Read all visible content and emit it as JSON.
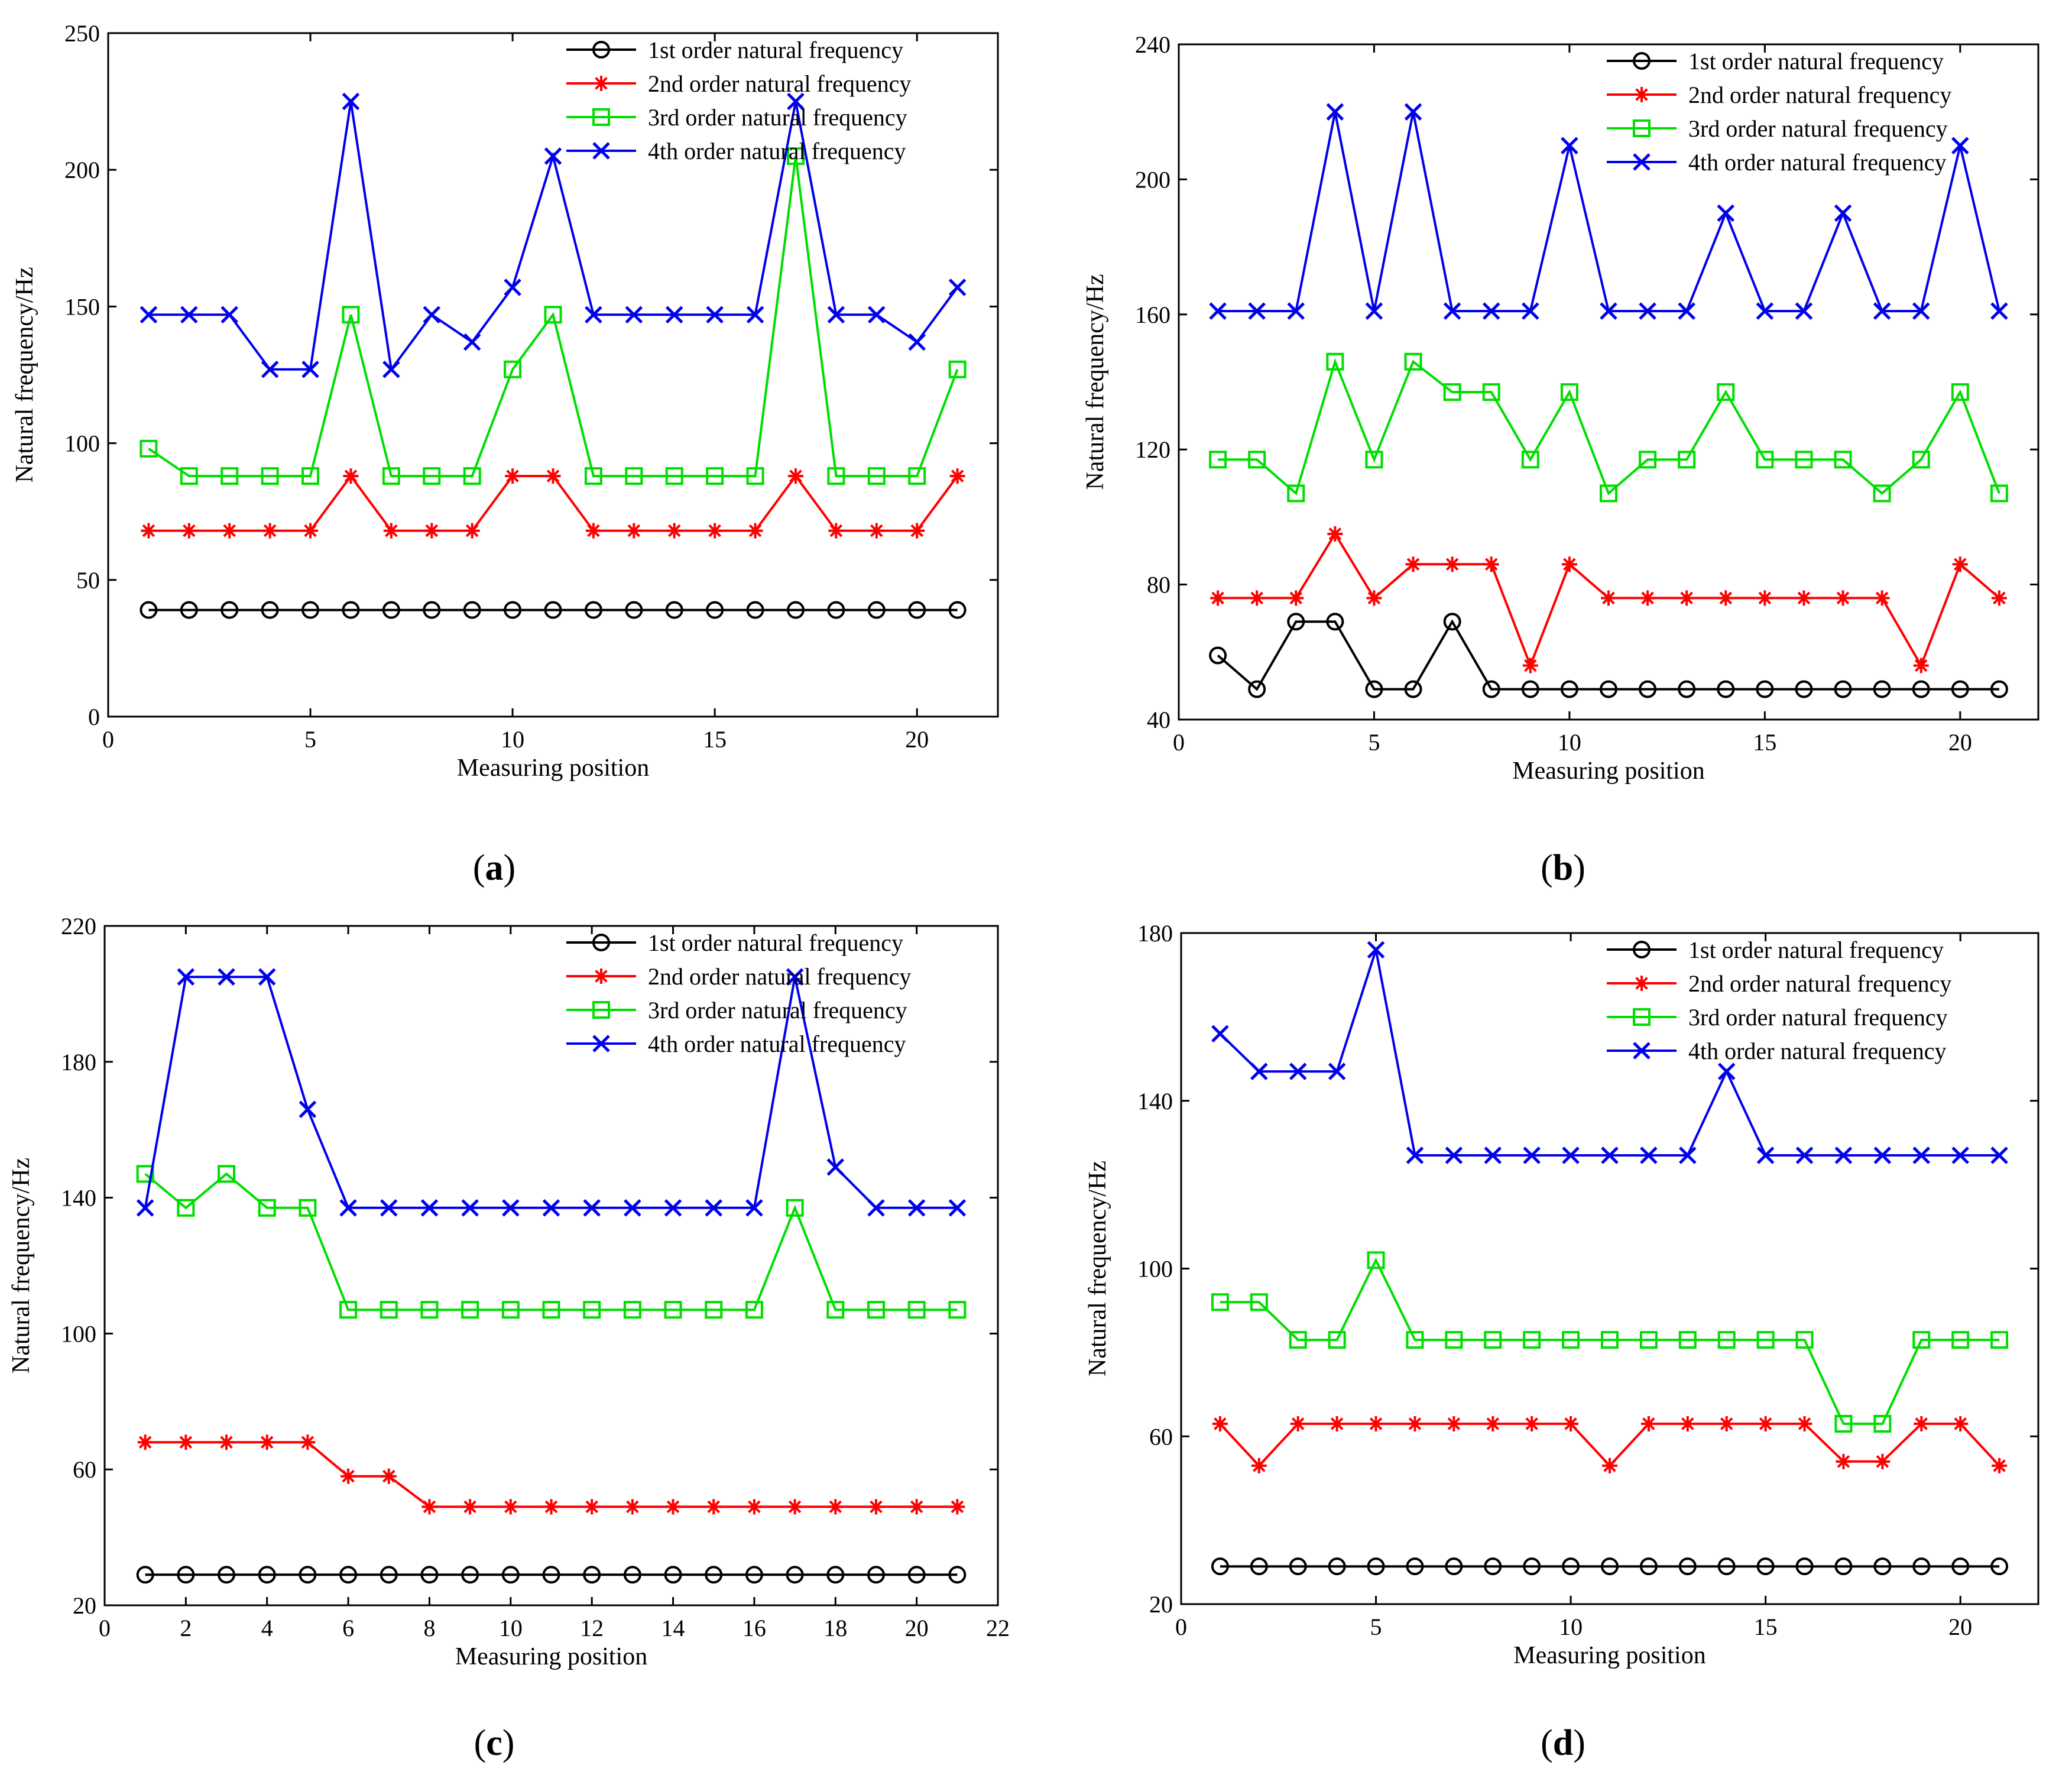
{
  "figure": {
    "series_names": [
      "1st order natural frequency",
      "2nd order natural frequency",
      "3rd order natural frequency",
      "4th order natural frequency"
    ],
    "series_colors": [
      "#000000",
      "#ff0000",
      "#00dd00",
      "#0000ee"
    ],
    "series_markers": [
      "circle",
      "asterisk",
      "square",
      "x"
    ]
  },
  "chart_data": [
    {
      "type": "line",
      "panel_label": "(a)",
      "xlabel": "Measuring position",
      "ylabel": "Natural frequency/Hz",
      "xlim": [
        0,
        22
      ],
      "ylim": [
        0,
        250
      ],
      "xticks": [
        0,
        5,
        10,
        15,
        20
      ],
      "yticks": [
        0,
        50,
        100,
        150,
        200,
        250
      ],
      "legend": "top-right",
      "grid": false,
      "x": [
        1,
        2,
        3,
        4,
        5,
        6,
        7,
        8,
        9,
        10,
        11,
        12,
        13,
        14,
        15,
        16,
        17,
        18,
        19,
        20,
        21
      ],
      "series": [
        {
          "name": "1st order natural frequency",
          "values": [
            39,
            39,
            39,
            39,
            39,
            39,
            39,
            39,
            39,
            39,
            39,
            39,
            39,
            39,
            39,
            39,
            39,
            39,
            39,
            39,
            39
          ]
        },
        {
          "name": "2nd order natural frequency",
          "values": [
            68,
            68,
            68,
            68,
            68,
            88,
            68,
            68,
            68,
            88,
            88,
            68,
            68,
            68,
            68,
            68,
            88,
            68,
            68,
            68,
            88
          ]
        },
        {
          "name": "3rd order natural frequency",
          "values": [
            98,
            88,
            88,
            88,
            88,
            147,
            88,
            88,
            88,
            127,
            147,
            88,
            88,
            88,
            88,
            88,
            205,
            88,
            88,
            88,
            127
          ]
        },
        {
          "name": "4th order natural frequency",
          "values": [
            147,
            147,
            147,
            127,
            127,
            225,
            127,
            147,
            137,
            157,
            205,
            147,
            147,
            147,
            147,
            147,
            225,
            147,
            147,
            137,
            157
          ]
        }
      ]
    },
    {
      "type": "line",
      "panel_label": "(b)",
      "xlabel": "Measuring position",
      "ylabel": "Natural frequency/Hz",
      "xlim": [
        0,
        22
      ],
      "ylim": [
        40,
        240
      ],
      "xticks": [
        0,
        5,
        10,
        15,
        20
      ],
      "yticks": [
        40,
        80,
        120,
        160,
        200,
        240
      ],
      "legend": "top-right",
      "grid": false,
      "x": [
        1,
        2,
        3,
        4,
        5,
        6,
        7,
        8,
        9,
        10,
        11,
        12,
        13,
        14,
        15,
        16,
        17,
        18,
        19,
        20,
        21
      ],
      "series": [
        {
          "name": "1st order natural frequency",
          "values": [
            59,
            49,
            69,
            69,
            49,
            49,
            69,
            49,
            49,
            49,
            49,
            49,
            49,
            49,
            49,
            49,
            49,
            49,
            49,
            49,
            49
          ]
        },
        {
          "name": "2nd order natural frequency",
          "values": [
            76,
            76,
            76,
            95,
            76,
            86,
            86,
            86,
            56,
            86,
            76,
            76,
            76,
            76,
            76,
            76,
            76,
            76,
            56,
            86,
            76
          ]
        },
        {
          "name": "3rd order natural frequency",
          "values": [
            117,
            117,
            107,
            146,
            117,
            146,
            137,
            137,
            117,
            137,
            107,
            117,
            117,
            137,
            117,
            117,
            117,
            107,
            117,
            137,
            107
          ]
        },
        {
          "name": "4th order natural frequency",
          "values": [
            161,
            161,
            161,
            220,
            161,
            220,
            161,
            161,
            161,
            210,
            161,
            161,
            161,
            190,
            161,
            161,
            190,
            161,
            161,
            210,
            161
          ]
        }
      ]
    },
    {
      "type": "line",
      "panel_label": "(c)",
      "xlabel": "Measuring position",
      "ylabel": "Natural frequency/Hz",
      "xlim": [
        0,
        22
      ],
      "ylim": [
        20,
        220
      ],
      "xticks": [
        0,
        2,
        4,
        6,
        8,
        10,
        12,
        14,
        16,
        18,
        20,
        22
      ],
      "yticks": [
        20,
        60,
        100,
        140,
        180,
        220
      ],
      "legend": "top-right",
      "grid": false,
      "x": [
        1,
        2,
        3,
        4,
        5,
        6,
        7,
        8,
        9,
        10,
        11,
        12,
        13,
        14,
        15,
        16,
        17,
        18,
        19,
        20,
        21
      ],
      "series": [
        {
          "name": "1st order natural frequency",
          "values": [
            29,
            29,
            29,
            29,
            29,
            29,
            29,
            29,
            29,
            29,
            29,
            29,
            29,
            29,
            29,
            29,
            29,
            29,
            29,
            29,
            29
          ]
        },
        {
          "name": "2nd order natural frequency",
          "values": [
            68,
            68,
            68,
            68,
            68,
            58,
            58,
            49,
            49,
            49,
            49,
            49,
            49,
            49,
            49,
            49,
            49,
            49,
            49,
            49,
            49
          ]
        },
        {
          "name": "3rd order natural frequency",
          "values": [
            147,
            137,
            147,
            137,
            137,
            107,
            107,
            107,
            107,
            107,
            107,
            107,
            107,
            107,
            107,
            107,
            137,
            107,
            107,
            107,
            107
          ]
        },
        {
          "name": "4th order natural frequency",
          "values": [
            137,
            205,
            205,
            205,
            166,
            137,
            137,
            137,
            137,
            137,
            137,
            137,
            137,
            137,
            137,
            137,
            205,
            149,
            137,
            137,
            137
          ]
        }
      ]
    },
    {
      "type": "line",
      "panel_label": "(d)",
      "xlabel": "Measuring position",
      "ylabel": "Natural frequency/Hz",
      "xlim": [
        0,
        22
      ],
      "ylim": [
        20,
        180
      ],
      "xticks": [
        0,
        5,
        10,
        15,
        20
      ],
      "yticks": [
        20,
        60,
        100,
        140,
        180
      ],
      "legend": "top-right",
      "grid": false,
      "x": [
        1,
        2,
        3,
        4,
        5,
        6,
        7,
        8,
        9,
        10,
        11,
        12,
        13,
        14,
        15,
        16,
        17,
        18,
        19,
        20,
        21
      ],
      "series": [
        {
          "name": "1st order natural frequency",
          "values": [
            29,
            29,
            29,
            29,
            29,
            29,
            29,
            29,
            29,
            29,
            29,
            29,
            29,
            29,
            29,
            29,
            29,
            29,
            29,
            29,
            29
          ]
        },
        {
          "name": "2nd order natural frequency",
          "values": [
            63,
            53,
            63,
            63,
            63,
            63,
            63,
            63,
            63,
            63,
            53,
            63,
            63,
            63,
            63,
            63,
            54,
            54,
            63,
            63,
            53
          ]
        },
        {
          "name": "3rd order natural frequency",
          "values": [
            92,
            92,
            83,
            83,
            102,
            83,
            83,
            83,
            83,
            83,
            83,
            83,
            83,
            83,
            83,
            83,
            63,
            63,
            83,
            83,
            83
          ]
        },
        {
          "name": "4th order natural frequency",
          "values": [
            156,
            147,
            147,
            147,
            176,
            127,
            127,
            127,
            127,
            127,
            127,
            127,
            127,
            147,
            127,
            127,
            127,
            127,
            127,
            127,
            127
          ]
        }
      ]
    }
  ]
}
